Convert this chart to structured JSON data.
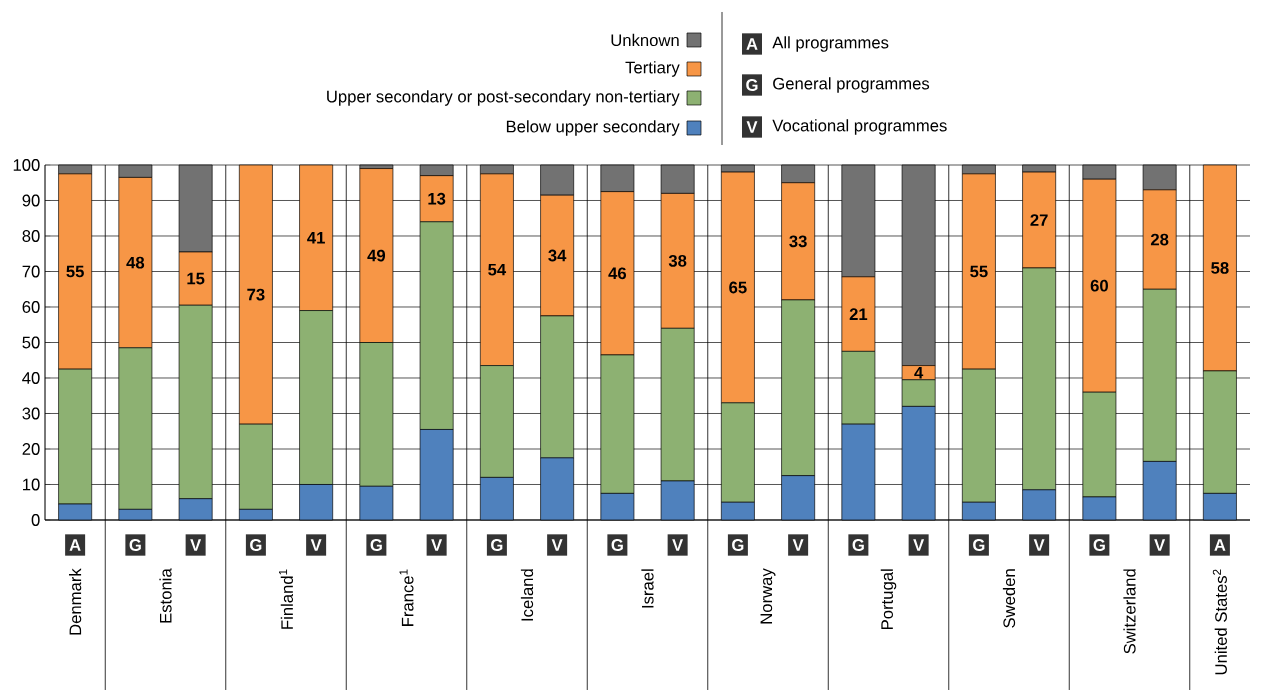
{
  "chart_data": {
    "type": "bar",
    "stacked": true,
    "categories": [
      "A",
      "G",
      "V",
      "G",
      "V",
      "G",
      "V",
      "G",
      "V",
      "G",
      "V",
      "G",
      "V",
      "G",
      "V",
      "G",
      "V",
      "G",
      "V",
      "A"
    ],
    "series": [
      {
        "name": "Below upper secondary",
        "color": "#4f81bd",
        "values": [
          4.5,
          3,
          6,
          3,
          10,
          9.5,
          25.5,
          12,
          17.5,
          7.5,
          11,
          5,
          12.5,
          27,
          32,
          5,
          8.5,
          6.5,
          16.5,
          7.5
        ]
      },
      {
        "name": "Upper secondary or post-secondary non-tertiary",
        "color": "#8db172",
        "values": [
          38,
          45.5,
          54.5,
          24,
          49,
          40.5,
          58.5,
          31.5,
          40,
          39,
          43,
          28,
          49.5,
          20.5,
          7.5,
          37.5,
          62.5,
          29.5,
          48.5,
          34.5
        ]
      },
      {
        "name": "Tertiary",
        "color": "#f79646",
        "values": [
          55,
          48,
          15,
          73,
          41,
          49,
          13,
          54,
          34,
          46,
          38,
          65,
          33,
          21,
          4,
          55,
          27,
          60,
          28,
          58
        ],
        "value_labels": [
          "55",
          "48",
          "15",
          "73",
          "41",
          "49",
          "13",
          "54",
          "34",
          "46",
          "38",
          "65",
          "33",
          "21",
          "4",
          "55",
          "27",
          "60",
          "28",
          "58"
        ]
      },
      {
        "name": "Unknown",
        "color": "#727272",
        "values": [
          2.5,
          3.5,
          24.5,
          0,
          0,
          1,
          3,
          2.5,
          8.5,
          7.5,
          8,
          2,
          5,
          31.5,
          56.5,
          2.5,
          2,
          4,
          7,
          0
        ]
      }
    ],
    "ylim": [
      0,
      100
    ],
    "yticks": [
      0,
      10,
      20,
      30,
      40,
      50,
      60,
      70,
      80,
      90,
      100
    ],
    "grid": "y",
    "legend": "top",
    "annotations": [
      "All programmes",
      "General programmes",
      "Vocational programmes",
      "Denmark",
      "Estonia",
      "Finland$^{1}$",
      "France$^{1}$",
      "Iceland",
      "Israel",
      "Norway",
      "Portugal",
      "Sweden",
      "Switzerland",
      "United States$^{2}$"
    ]
  }
}
